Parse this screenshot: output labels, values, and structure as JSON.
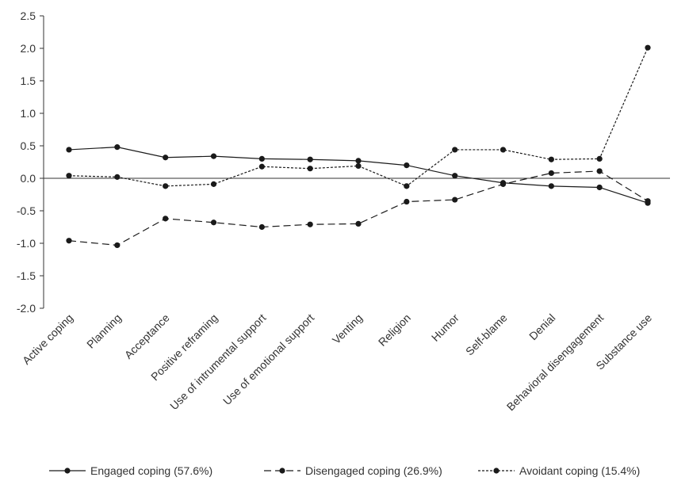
{
  "chart_data": {
    "type": "line",
    "categories": [
      "Active coping",
      "Planning",
      "Acceptance",
      "Positive reframing",
      "Use of intrumental support",
      "Use of emotional support",
      "Venting",
      "Religion",
      "Humor",
      "Self-blame",
      "Denial",
      "Behavioral disengagement",
      "Substance use"
    ],
    "ylim": [
      -2.0,
      2.5
    ],
    "yticks": [
      "2.5",
      "2.0",
      "1.5",
      "1.0",
      "0.5",
      "0.0",
      "-0.5",
      "-1.0",
      "-1.5",
      "-2.0"
    ],
    "grid": false,
    "legend_position": "bottom",
    "series": [
      {
        "name": "Engaged coping (57.6%)",
        "dash": "solid",
        "color": "#1a1a1a",
        "values": [
          0.44,
          0.48,
          0.32,
          0.34,
          0.3,
          0.29,
          0.27,
          0.2,
          0.04,
          -0.07,
          -0.12,
          -0.14,
          -0.38
        ]
      },
      {
        "name": "Disengaged coping (26.9%)",
        "dash": "dashed",
        "color": "#1a1a1a",
        "values": [
          -0.96,
          -1.03,
          -0.62,
          -0.68,
          -0.75,
          -0.71,
          -0.7,
          -0.36,
          -0.33,
          -0.09,
          0.08,
          0.11,
          -0.35
        ]
      },
      {
        "name": "Avoidant coping (15.4%)",
        "dash": "dotted",
        "color": "#1a1a1a",
        "values": [
          0.04,
          0.02,
          -0.12,
          -0.09,
          0.18,
          0.15,
          0.19,
          -0.12,
          0.44,
          0.44,
          0.29,
          0.3,
          2.01
        ]
      }
    ]
  }
}
